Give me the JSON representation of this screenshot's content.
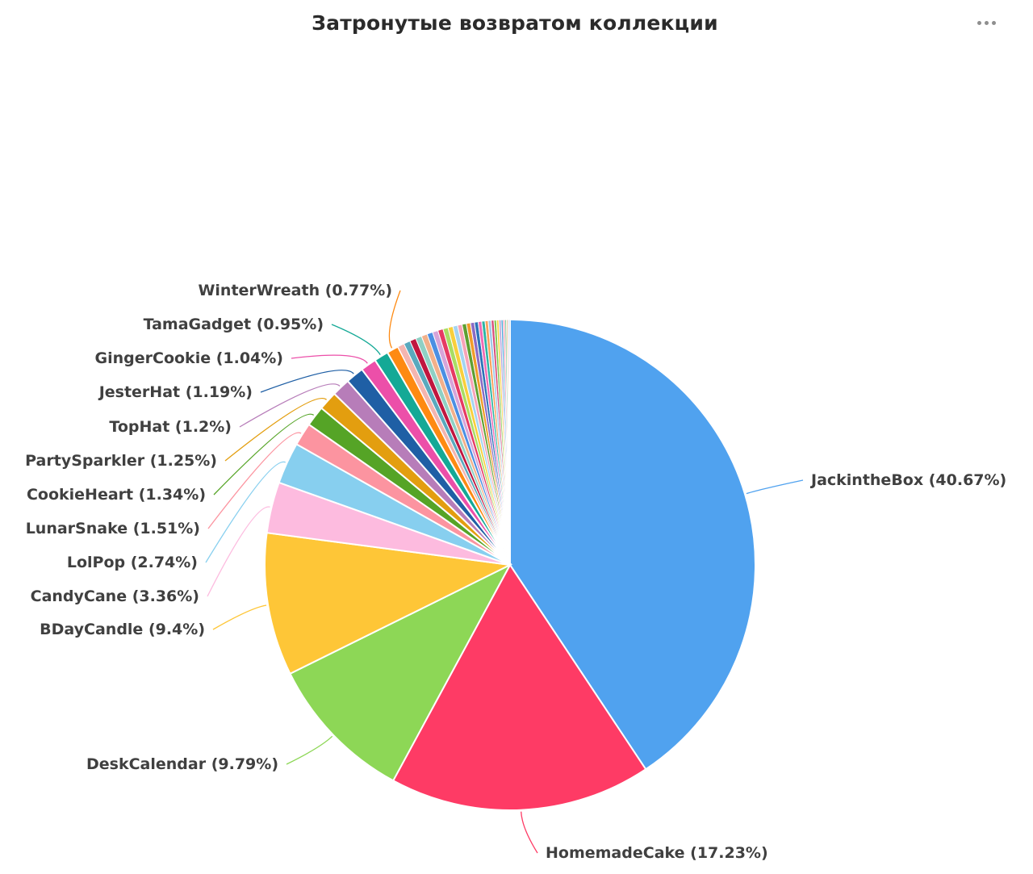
{
  "chart_data": {
    "type": "pie",
    "title": "Затронутые возвратом коллекции",
    "slices": [
      {
        "label": "JackintheBox (40.67%)",
        "value": 40.67,
        "color": "#50A2EF"
      },
      {
        "label": "HomemadeCake (17.23%)",
        "value": 17.23,
        "color": "#FE3B65"
      },
      {
        "label": "DeskCalendar (9.79%)",
        "value": 9.79,
        "color": "#8DD756"
      },
      {
        "label": "BDayCandle (9.4%)",
        "value": 9.4,
        "color": "#FEC637"
      },
      {
        "label": "CandyCane (3.36%)",
        "value": 3.36,
        "color": "#FDBBDF"
      },
      {
        "label": "LolPop (2.74%)",
        "value": 2.74,
        "color": "#87CFEF"
      },
      {
        "label": "LunarSnake (1.51%)",
        "value": 1.51,
        "color": "#FC94A0"
      },
      {
        "label": "CookieHeart (1.34%)",
        "value": 1.34,
        "color": "#55A426"
      },
      {
        "label": "PartySparkler (1.25%)",
        "value": 1.25,
        "color": "#E39E0F"
      },
      {
        "label": "TopHat (1.2%)",
        "value": 1.2,
        "color": "#B77DB9"
      },
      {
        "label": "JesterHat (1.19%)",
        "value": 1.19,
        "color": "#1F5FA5"
      },
      {
        "label": "GingerCookie (1.04%)",
        "value": 1.04,
        "color": "#EC4FA9"
      },
      {
        "label": "TamaGadget (0.95%)",
        "value": 0.95,
        "color": "#14A996"
      },
      {
        "label": "WinterWreath (0.77%)",
        "value": 0.77,
        "color": "#FE8A12"
      }
    ],
    "others": {
      "count": 30,
      "total": 7.56,
      "colors": [
        "#F4B5B0",
        "#59A9BE",
        "#C0163F",
        "#8FD0C4",
        "#F2B08A",
        "#4B8FE3",
        "#D7A4D9",
        "#E63A63",
        "#A9DD63",
        "#F8CF3C",
        "#A4D4F1",
        "#F7A3B8",
        "#5E9F31",
        "#F09C2A",
        "#8B6BC4",
        "#2C73B8",
        "#F06CB6",
        "#2DB5A4",
        "#FBA15C",
        "#9EC8E8",
        "#D84A77",
        "#7FC64F",
        "#FFD34A",
        "#B7A0D6",
        "#48A3D6",
        "#F78FA6",
        "#6CBF8A",
        "#E8B16A",
        "#9B8AC9",
        "#5FB7C9"
      ]
    }
  }
}
